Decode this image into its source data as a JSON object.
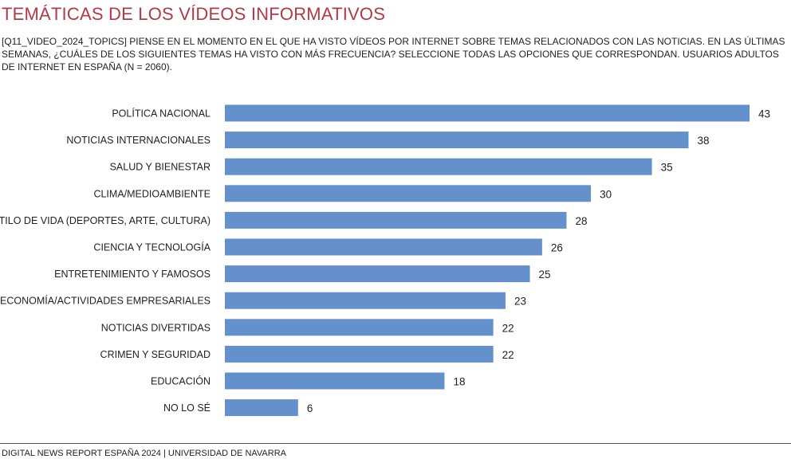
{
  "header": {
    "title": "TEMÁTICAS DE LOS VÍDEOS INFORMATIVOS",
    "subtitle": "[Q11_VIDEO_2024_TOPICS] PIENSE EN EL MOMENTO EN EL QUE HA VISTO VÍDEOS POR INTERNET SOBRE TEMAS RELACIONADOS CON LAS NOTICIAS. EN LAS ÚLTIMAS SEMANAS, ¿CUÁLES DE LOS SIGUIENTES TEMAS HA VISTO CON MÁS FRECUENCIA? SELECCIONE TODAS LAS OPCIONES QUE CORRESPONDAN. USUARIOS ADULTOS DE INTERNET EN ESPAÑA (N = 2060)."
  },
  "footer": {
    "text": "DIGITAL NEWS REPORT ESPAÑA 2024 | UNIVERSIDAD DE NAVARRA"
  },
  "colors": {
    "bar": "#6490cc",
    "title": "#b23a48"
  },
  "chart_data": {
    "type": "bar",
    "orientation": "horizontal",
    "categories": [
      "POLÍTICA NACIONAL",
      "NOTICIAS INTERNACIONALES",
      "SALUD Y BIENESTAR",
      "CLIMA/MEDIOAMBIENTE",
      "ESTILO DE VIDA (DEPORTES, ARTE, CULTURA)",
      "CIENCIA Y TECNOLOGÍA",
      "ENTRETENIMIENTO Y FAMOSOS",
      "ECONOMÍA/ACTIVIDADES EMPRESARIALES",
      "NOTICIAS DIVERTIDAS",
      "CRIMEN Y SEGURIDAD",
      "EDUCACIÓN",
      "NO LO SÉ"
    ],
    "values": [
      43,
      38,
      35,
      30,
      28,
      26,
      25,
      23,
      22,
      22,
      18,
      6
    ],
    "xlim": [
      0,
      43
    ],
    "grid": false,
    "legend": "none",
    "data_labels": true
  }
}
